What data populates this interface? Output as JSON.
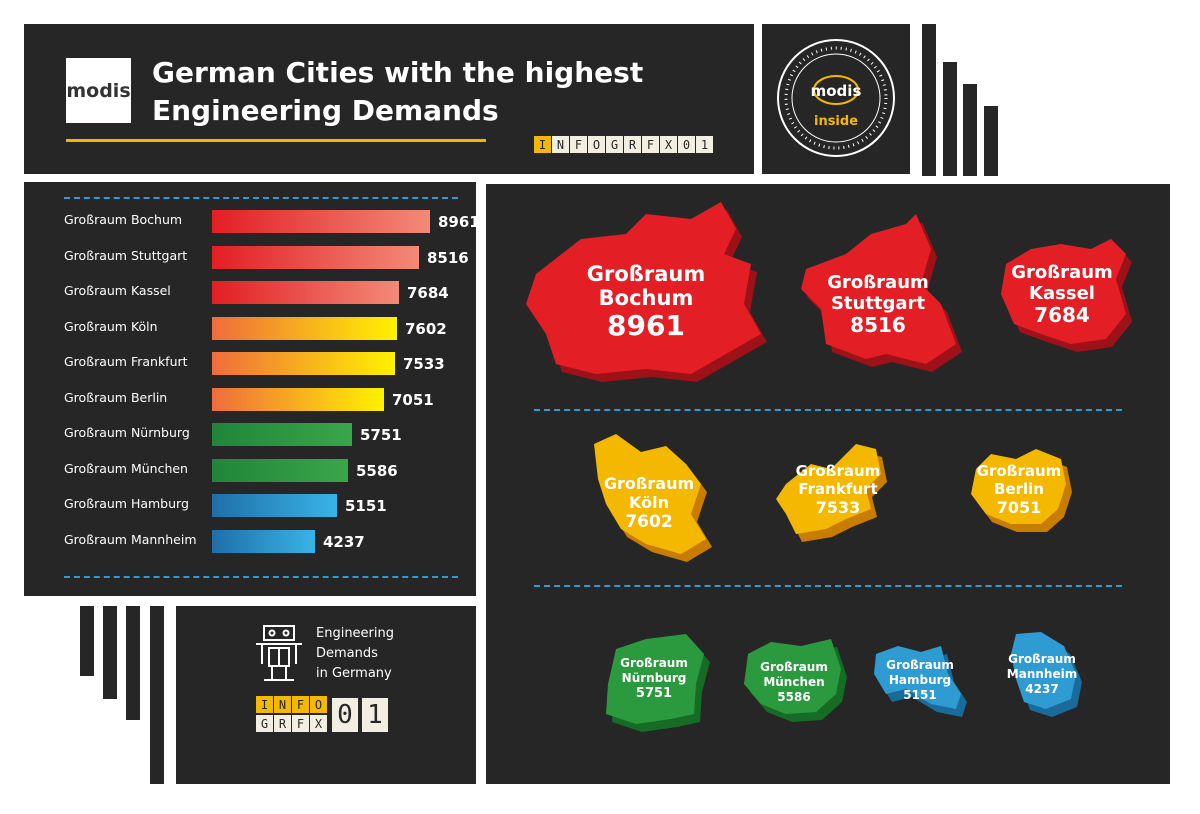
{
  "header": {
    "logo_text": "modis",
    "title_line1": "German Cities with the highest",
    "title_line2": "Engineering Demands",
    "code_letters": [
      "I",
      "N",
      "F",
      "O",
      "G",
      "R",
      "F",
      "X",
      "0",
      "1"
    ]
  },
  "badge": {
    "logo_text": "modis",
    "sub_text": "inside"
  },
  "footer": {
    "line1": "Engineering",
    "line2": "Demands",
    "line3": "in Germany",
    "code_row1": [
      "I",
      "N",
      "F",
      "O"
    ],
    "code_row2": [
      "G",
      "R",
      "F",
      "X"
    ],
    "code_big": [
      "0",
      "1"
    ],
    "icon": "robot-icon"
  },
  "colors": {
    "red": "#e31e24",
    "orange_yellow": "#f5b800",
    "green": "#2b9a3f",
    "blue": "#2f9bd3",
    "panel": "#262626"
  },
  "chart_data": {
    "type": "bar",
    "orientation": "horizontal",
    "categories": [
      "Großraum Bochum",
      "Großraum Stuttgart",
      "Großraum Kassel",
      "Großraum Köln",
      "Großraum Frankfurt",
      "Großraum Berlin",
      "Großraum Nürnburg",
      "Großraum München",
      "Großraum Hamburg",
      "Großraum Mannheim"
    ],
    "values": [
      8961,
      8516,
      7684,
      7602,
      7533,
      7051,
      5751,
      5586,
      5151,
      4237
    ],
    "value_labels": [
      "8961",
      "8516",
      "7684",
      "7602",
      "7533",
      "7051",
      "5751",
      "5586",
      "5151",
      "4237"
    ],
    "bar_groups": [
      "red",
      "red",
      "red",
      "orange",
      "orange",
      "orange",
      "green",
      "green",
      "blue",
      "blue"
    ]
  },
  "map": {
    "regions": [
      {
        "line1": "Großraum",
        "line2": "Bochum",
        "value": "8961",
        "color": "red"
      },
      {
        "line1": "Großraum",
        "line2": "Stuttgart",
        "value": "8516",
        "color": "red"
      },
      {
        "line1": "Großraum",
        "line2": "Kassel",
        "value": "7684",
        "color": "red"
      },
      {
        "line1": "Großraum",
        "line2": "Köln",
        "value": "7602",
        "color": "yellow"
      },
      {
        "line1": "Großraum",
        "line2": "Frankfurt",
        "value": "7533",
        "color": "yellow"
      },
      {
        "line1": "Großraum",
        "line2": "Berlin",
        "value": "7051",
        "color": "yellow"
      },
      {
        "line1": "Großraum",
        "line2": "Nürnburg",
        "value": "5751",
        "color": "green"
      },
      {
        "line1": "Großraum",
        "line2": "München",
        "value": "5586",
        "color": "green"
      },
      {
        "line1": "Großraum",
        "line2": "Hamburg",
        "value": "5151",
        "color": "blue"
      },
      {
        "line1": "Großraum",
        "line2": "Mannheim",
        "value": "4237",
        "color": "blue"
      }
    ]
  }
}
